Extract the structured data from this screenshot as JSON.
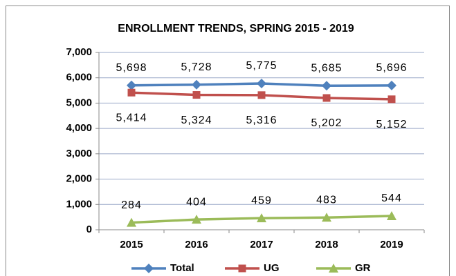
{
  "chart_data": {
    "type": "line",
    "title": "ENROLLMENT TRENDS,  SPRING 2015  - 2019",
    "categories": [
      "2015",
      "2016",
      "2017",
      "2018",
      "2019"
    ],
    "series": [
      {
        "name": "Total",
        "color": "#4f81bd",
        "marker": "diamond",
        "values": [
          5698,
          5728,
          5775,
          5685,
          5696
        ],
        "value_labels": [
          "5,698",
          "5,728",
          "5,775",
          "5,685",
          "5,696"
        ]
      },
      {
        "name": "UG",
        "color": "#c0504d",
        "marker": "square",
        "values": [
          5414,
          5324,
          5316,
          5202,
          5152
        ],
        "value_labels": [
          "5,414",
          "5,324",
          "5,316",
          "5,202",
          "5,152"
        ]
      },
      {
        "name": "GR",
        "color": "#9bbb59",
        "marker": "triangle",
        "values": [
          284,
          404,
          459,
          483,
          544
        ],
        "value_labels": [
          "284",
          "404",
          "459",
          "483",
          "544"
        ]
      }
    ],
    "ylim": [
      0,
      7000
    ],
    "yticks": [
      0,
      {
        "value": 1000,
        "label": "1,000"
      },
      {
        "value": 2000,
        "label": "2,000"
      },
      {
        "value": 3000,
        "label": "3,000"
      },
      {
        "value": 4000,
        "label": "4,000"
      },
      {
        "value": 5000,
        "label": "5,000"
      },
      {
        "value": 6000,
        "label": "6,000"
      },
      {
        "value": 7000,
        "label": "7,000"
      }
    ],
    "grid": true,
    "legend": "bottom"
  }
}
